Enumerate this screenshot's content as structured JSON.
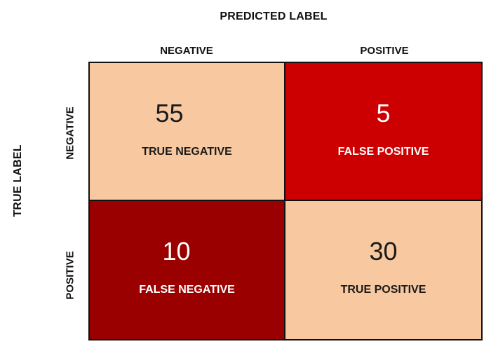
{
  "axes": {
    "predicted_title": "PREDICTED LABEL",
    "true_title": "TRUE LABEL",
    "columns": [
      "NEGATIVE",
      "POSITIVE"
    ],
    "rows": [
      "NEGATIVE",
      "POSITIVE"
    ]
  },
  "cells": {
    "tn": {
      "count": "55",
      "caption": "TRUE NEGATIVE",
      "bg": "#f8c9a0",
      "fg": "#1a1a1a"
    },
    "fp": {
      "count": "5",
      "caption": "FALSE POSITIVE",
      "bg": "#cc0000",
      "fg": "#ffffff"
    },
    "fn": {
      "count": "10",
      "caption": "FALSE NEGATIVE",
      "bg": "#9b0000",
      "fg": "#ffffff"
    },
    "tp": {
      "count": "30",
      "caption": "TRUE POSITIVE",
      "bg": "#f8c9a0",
      "fg": "#1a1a1a"
    }
  }
}
